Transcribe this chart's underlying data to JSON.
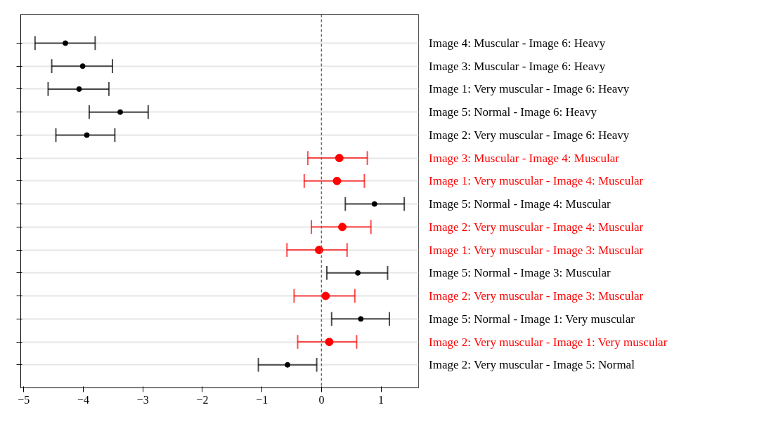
{
  "chart_data": {
    "type": "scatter",
    "orientation": "horizontal",
    "marker": "circle",
    "grid": "y",
    "categories": [
      "Image 4: Muscular - Image 6: Heavy",
      "Image 3: Muscular - Image 6: Heavy",
      "Image 1: Very muscular - Image 6: Heavy",
      "Image 5: Normal - Image 6: Heavy",
      "Image 2: Very muscular - Image 6: Heavy",
      "Image 3: Muscular - Image 4: Muscular",
      "Image 1: Very muscular - Image 4: Muscular",
      "Image 5: Normal - Image 4: Muscular",
      "Image 2: Very muscular - Image 4: Muscular",
      "Image 1: Very muscular - Image 3: Muscular",
      "Image 5: Normal - Image 3: Muscular",
      "Image 2: Very muscular - Image 3: Muscular",
      "Image 5: Normal - Image 1: Very muscular",
      "Image 2: Very muscular - Image 1: Very muscular",
      "Image 2: Very muscular - Image 5: Normal"
    ],
    "series": [
      {
        "color": "#000000",
        "values": [
          -4.3,
          -4.01,
          -4.07,
          -3.38,
          -3.94,
          null,
          null,
          0.89,
          null,
          null,
          0.61,
          null,
          0.66,
          null,
          -0.57
        ],
        "errors": [
          [
            -4.81,
            -3.8
          ],
          [
            -4.53,
            -3.51
          ],
          [
            -4.59,
            -3.57
          ],
          [
            -3.9,
            -2.91
          ],
          [
            -4.46,
            -3.47
          ],
          null,
          null,
          [
            0.4,
            1.39
          ],
          null,
          null,
          [
            0.09,
            1.11
          ],
          null,
          [
            0.17,
            1.14
          ],
          null,
          [
            -1.06,
            -0.08
          ]
        ]
      },
      {
        "color": "#ff0000",
        "values": [
          null,
          null,
          null,
          null,
          null,
          0.3,
          0.26,
          null,
          0.35,
          -0.04,
          null,
          0.07,
          null,
          0.13,
          null
        ],
        "errors": [
          null,
          null,
          null,
          null,
          null,
          [
            -0.23,
            0.77
          ],
          [
            -0.29,
            0.72
          ],
          null,
          [
            -0.17,
            0.83
          ],
          [
            -0.58,
            0.43
          ],
          null,
          [
            -0.46,
            0.56
          ],
          null,
          [
            -0.4,
            0.59
          ],
          null
        ]
      }
    ],
    "xlim": [
      -5.05,
      1.63
    ],
    "xticks": [
      -5,
      -4,
      -3,
      -2,
      -1,
      0,
      1
    ],
    "ref_lines": [
      {
        "axis": "x",
        "value": 0,
        "line_style": "dashed",
        "color": "#666666"
      }
    ]
  }
}
